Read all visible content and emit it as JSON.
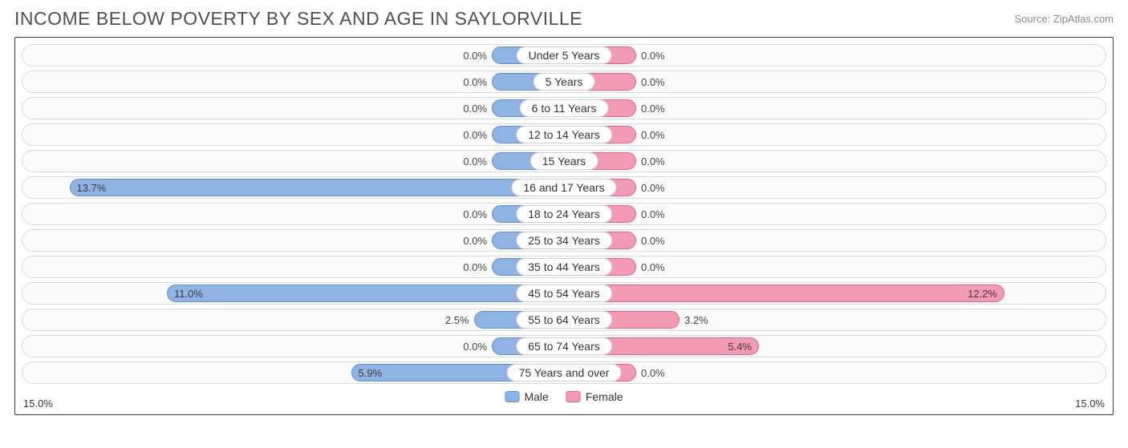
{
  "title": "INCOME BELOW POVERTY BY SEX AND AGE IN SAYLORVILLE",
  "source": "Source: ZipAtlas.com",
  "chart": {
    "type": "diverging-bar",
    "axis_max": 15.0,
    "axis_label_left": "15.0%",
    "axis_label_right": "15.0%",
    "min_bar_pct": 2.0,
    "background_color": "#ffffff",
    "track_bg": "#fbfbfb",
    "track_border": "#d9d9d9",
    "chart_border": "#3a3a3a",
    "male_fill": "#8fb3e2",
    "male_border": "#5e8fd4",
    "female_fill": "#f39ab4",
    "female_border": "#ea5f8b",
    "label_bg": "#ffffff",
    "label_border": "#cfcfcf",
    "text_color": "#444444",
    "value_fontsize": 13,
    "category_fontsize": 14,
    "title_fontsize": 23,
    "title_color": "#4f4f4f",
    "source_color": "#8a8a8a",
    "legend": {
      "male": "Male",
      "female": "Female"
    },
    "rows": [
      {
        "category": "Under 5 Years",
        "male": 0.0,
        "female": 0.0
      },
      {
        "category": "5 Years",
        "male": 0.0,
        "female": 0.0
      },
      {
        "category": "6 to 11 Years",
        "male": 0.0,
        "female": 0.0
      },
      {
        "category": "12 to 14 Years",
        "male": 0.0,
        "female": 0.0
      },
      {
        "category": "15 Years",
        "male": 0.0,
        "female": 0.0
      },
      {
        "category": "16 and 17 Years",
        "male": 13.7,
        "female": 0.0
      },
      {
        "category": "18 to 24 Years",
        "male": 0.0,
        "female": 0.0
      },
      {
        "category": "25 to 34 Years",
        "male": 0.0,
        "female": 0.0
      },
      {
        "category": "35 to 44 Years",
        "male": 0.0,
        "female": 0.0
      },
      {
        "category": "45 to 54 Years",
        "male": 11.0,
        "female": 12.2
      },
      {
        "category": "55 to 64 Years",
        "male": 2.5,
        "female": 3.2
      },
      {
        "category": "65 to 74 Years",
        "male": 0.0,
        "female": 5.4
      },
      {
        "category": "75 Years and over",
        "male": 5.9,
        "female": 0.0
      }
    ]
  }
}
